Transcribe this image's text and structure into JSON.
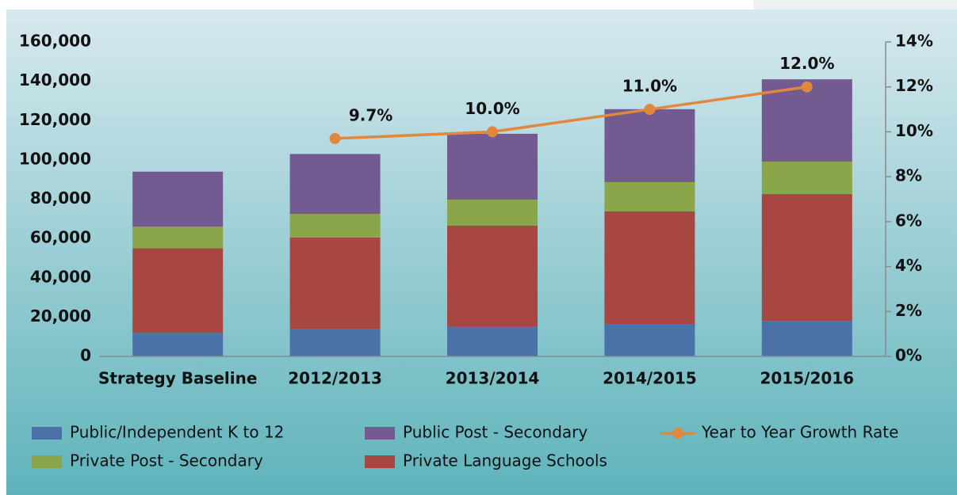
{
  "chart_data": {
    "type": "bar",
    "categories": [
      "Strategy Baseline",
      "2012/2013",
      "2013/2014",
      "2014/2015",
      "2015/2016"
    ],
    "series": [
      {
        "name": "Public/Independent K to 12",
        "color": "#4a72a8",
        "values": [
          12000,
          14000,
          15000,
          16500,
          18000
        ]
      },
      {
        "name": "Private Language Schools",
        "color": "#a84742",
        "values": [
          43000,
          46500,
          51500,
          57300,
          64600
        ]
      },
      {
        "name": "Private Post - Secondary",
        "color": "#8aa54a",
        "values": [
          11000,
          12000,
          13300,
          14900,
          16500
        ]
      },
      {
        "name": "Public Post - Secondary",
        "color": "#735a91",
        "values": [
          28000,
          30500,
          33500,
          37100,
          41900
        ]
      },
      {
        "name": "Year to Year Growth Rate",
        "type": "line",
        "axis": "y2",
        "color": "#e0883e",
        "values": [
          null,
          9.7,
          10.0,
          11.0,
          12.0
        ],
        "value_labels": [
          null,
          "9.7%",
          "10.0%",
          "11.0%",
          "12.0%"
        ]
      }
    ],
    "stacked": true,
    "ylim": [
      0,
      160000
    ],
    "yticks": [
      0,
      {
        "value": 20000,
        "label": "20,000"
      },
      {
        "value": 40000,
        "label": "40,000"
      },
      {
        "value": 60000,
        "label": "60,000"
      },
      {
        "value": 80000,
        "label": "80,000"
      },
      {
        "value": 100000,
        "label": "100,000"
      },
      {
        "value": 120000,
        "label": "120,000"
      },
      {
        "value": 140000,
        "label": "140,000"
      },
      {
        "value": 160000,
        "label": "160,000"
      }
    ],
    "y2lim": [
      0,
      14
    ],
    "y2ticks": [
      {
        "value": 0,
        "label": "0%"
      },
      {
        "value": 2,
        "label": "2%"
      },
      {
        "value": 4,
        "label": "4%"
      },
      {
        "value": 6,
        "label": "6%"
      },
      {
        "value": 8,
        "label": "8%"
      },
      {
        "value": 10,
        "label": "10%"
      },
      {
        "value": 12,
        "label": "12%"
      },
      {
        "value": 14,
        "label": "14%"
      }
    ],
    "legend": "bottom"
  }
}
